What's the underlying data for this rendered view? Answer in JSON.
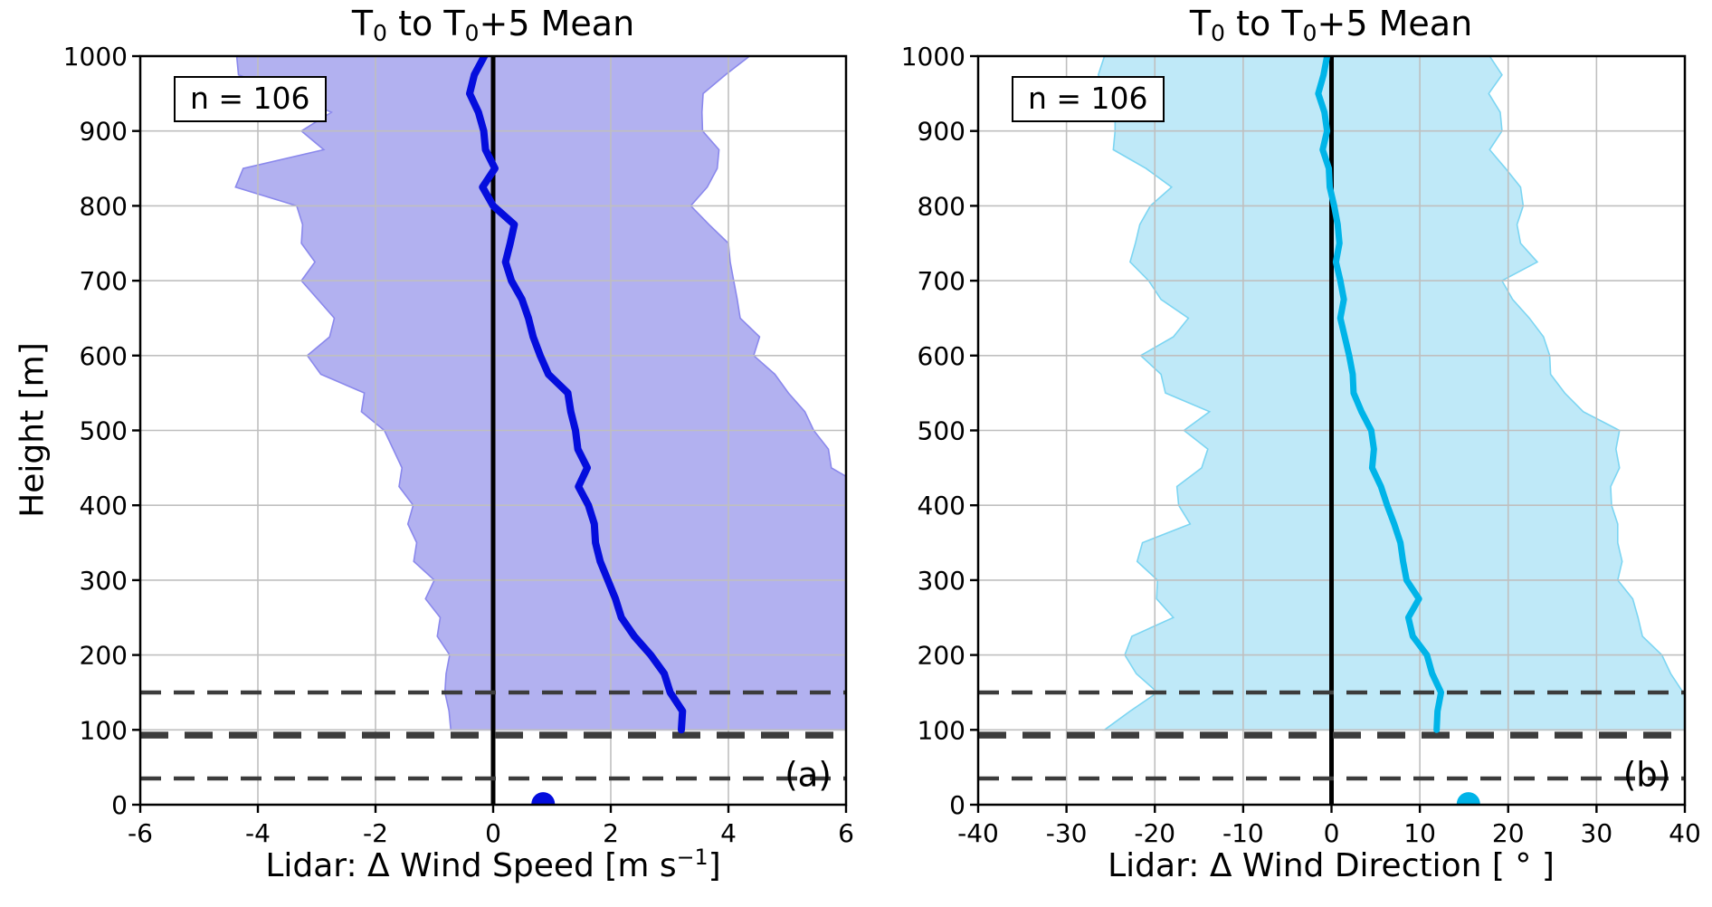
{
  "page": {
    "ylabel": "Height [m]",
    "annotation": "n = 106",
    "title_parts": {
      "p1": "T",
      "s1": "0",
      "p2": " to T",
      "s2": "0",
      "p3": "+5 Mean"
    },
    "xlabel_left_parts": {
      "pre": "Lidar: Δ Wind Speed [m s",
      "sup": "−1",
      "post": "]"
    },
    "xlabel_right": "Lidar: Δ Wind Direction [ ° ]",
    "panel_letters": [
      "(a)",
      "(b)"
    ]
  },
  "chart_data": [
    {
      "type": "area",
      "title": "T0 to T0+5 Mean",
      "xlabel": "Lidar: Δ Wind Speed [m s^-1]",
      "ylabel": "Height [m]",
      "n_samples": 106,
      "xlim": [
        -6,
        6
      ],
      "ylim": [
        0,
        1000
      ],
      "grid": true,
      "x_ticks": [
        -6,
        -4,
        -2,
        0,
        2,
        4,
        6
      ],
      "x_tick_labels": [
        "-6",
        "-4",
        "-2",
        "0",
        "2",
        "4",
        "6"
      ],
      "y_ticks": [
        0,
        100,
        200,
        300,
        400,
        500,
        600,
        700,
        800,
        900,
        1000
      ],
      "y_tick_labels": [
        "0",
        "100",
        "200",
        "300",
        "400",
        "500",
        "600",
        "700",
        "800",
        "900",
        "1000"
      ],
      "heights": [
        100,
        125,
        150,
        175,
        200,
        225,
        250,
        275,
        300,
        325,
        350,
        375,
        400,
        425,
        450,
        475,
        500,
        525,
        550,
        575,
        600,
        625,
        650,
        675,
        700,
        725,
        750,
        775,
        800,
        825,
        850,
        875,
        900,
        925,
        950,
        975,
        1000
      ],
      "mean": [
        3.2,
        3.22,
        3.01,
        2.91,
        2.68,
        2.4,
        2.18,
        2.08,
        1.95,
        1.82,
        1.74,
        1.72,
        1.62,
        1.45,
        1.6,
        1.44,
        1.4,
        1.32,
        1.27,
        0.94,
        0.8,
        0.68,
        0.6,
        0.49,
        0.31,
        0.21,
        0.29,
        0.36,
        0.0,
        -0.18,
        0.03,
        -0.13,
        -0.16,
        -0.25,
        -0.4,
        -0.32,
        -0.15
      ],
      "env_lo": [
        -0.72,
        -0.75,
        -0.82,
        -0.8,
        -0.74,
        -0.95,
        -0.9,
        -1.15,
        -1.0,
        -1.35,
        -1.3,
        -1.45,
        -1.36,
        -1.6,
        -1.55,
        -1.7,
        -1.85,
        -2.24,
        -2.19,
        -2.93,
        -3.16,
        -2.78,
        -2.7,
        -2.98,
        -3.26,
        -3.03,
        -3.26,
        -3.24,
        -3.34,
        -4.38,
        -4.25,
        -2.88,
        -3.26,
        -2.75,
        -3.5,
        -4.33,
        -4.36
      ],
      "env_hi": [
        6.3,
        6.3,
        6.3,
        6.3,
        6.3,
        6.3,
        6.3,
        6.3,
        6.3,
        6.3,
        6.3,
        6.3,
        6.3,
        6.3,
        5.75,
        5.7,
        5.45,
        5.3,
        5.02,
        4.79,
        4.43,
        4.53,
        4.2,
        4.15,
        4.09,
        4.03,
        4.0,
        3.67,
        3.36,
        3.64,
        3.81,
        3.84,
        3.56,
        3.55,
        3.57,
        3.95,
        4.36
      ],
      "surface_dot": {
        "x": 0.85,
        "height": 1
      },
      "hlines": [
        {
          "height": 150,
          "weight": "thin"
        },
        {
          "height": 93,
          "weight": "thick"
        },
        {
          "height": 35,
          "weight": "thin"
        }
      ],
      "colors": {
        "fill": "#b2b1f0",
        "fill_edge": "#8a88ec",
        "line": "#040ddd",
        "zero_line": "#000000",
        "dash": "#3c3c3c",
        "grid": "#bfbfbf"
      }
    },
    {
      "type": "area",
      "title": "T0 to T0+5 Mean",
      "xlabel": "Lidar: Δ Wind Direction [ ° ]",
      "ylabel": "Height [m]",
      "n_samples": 106,
      "xlim": [
        -40,
        40
      ],
      "ylim": [
        0,
        1000
      ],
      "grid": true,
      "x_ticks": [
        -40,
        -30,
        -20,
        -10,
        0,
        10,
        20,
        30,
        40
      ],
      "x_tick_labels": [
        "-40",
        "-30",
        "-20",
        "-10",
        "0",
        "10",
        "20",
        "30",
        "40"
      ],
      "y_ticks": [
        0,
        100,
        200,
        300,
        400,
        500,
        600,
        700,
        800,
        900,
        1000
      ],
      "y_tick_labels": [
        "0",
        "100",
        "200",
        "300",
        "400",
        "500",
        "600",
        "700",
        "800",
        "900",
        "1000"
      ],
      "heights": [
        100,
        125,
        150,
        175,
        200,
        225,
        250,
        275,
        300,
        325,
        350,
        375,
        400,
        425,
        450,
        475,
        500,
        525,
        550,
        575,
        600,
        625,
        650,
        675,
        700,
        725,
        750,
        775,
        800,
        825,
        850,
        875,
        900,
        925,
        950,
        975,
        1000
      ],
      "mean": [
        11.9,
        12.0,
        12.4,
        11.4,
        10.8,
        9.2,
        8.7,
        9.9,
        8.5,
        8.1,
        7.8,
        7.1,
        6.3,
        5.6,
        4.6,
        4.8,
        4.5,
        3.4,
        2.5,
        2.4,
        2.0,
        1.5,
        1.0,
        1.4,
        1.0,
        0.5,
        0.9,
        0.7,
        0.3,
        -0.2,
        -0.3,
        -1.0,
        -0.5,
        -0.8,
        -1.5,
        -0.9,
        -0.5
      ],
      "env_lo": [
        -25.7,
        -22.8,
        -19.7,
        -22.1,
        -23.4,
        -22.6,
        -17.9,
        -19.8,
        -19.7,
        -22.0,
        -21.4,
        -16.0,
        -17.3,
        -17.5,
        -14.7,
        -14.0,
        -16.7,
        -13.8,
        -18.8,
        -19.3,
        -21.6,
        -17.9,
        -16.2,
        -19.3,
        -20.7,
        -22.8,
        -22.2,
        -21.7,
        -20.5,
        -18.1,
        -21.0,
        -24.7,
        -24.5,
        -24.5,
        -25.3,
        -26.4,
        -25.7
      ],
      "env_hi": [
        41.5,
        41.5,
        39.8,
        38.4,
        37.4,
        35.2,
        34.7,
        34.1,
        32.4,
        32.9,
        32.4,
        32.4,
        31.7,
        31.6,
        32.6,
        32.2,
        32.6,
        28.5,
        26.4,
        24.8,
        24.7,
        24.0,
        22.4,
        20.5,
        19.3,
        23.3,
        21.4,
        21.0,
        21.7,
        21.4,
        19.7,
        17.9,
        19.3,
        19.1,
        17.8,
        19.3,
        17.9
      ],
      "surface_dot": {
        "x": 15.5,
        "height": 1
      },
      "hlines": [
        {
          "height": 150,
          "weight": "thin"
        },
        {
          "height": 93,
          "weight": "thick"
        },
        {
          "height": 35,
          "weight": "thin"
        }
      ],
      "colors": {
        "fill": "#bfe9f8",
        "fill_edge": "#7cd5f2",
        "line": "#00b4e8",
        "zero_line": "#000000",
        "dash": "#3c3c3c",
        "grid": "#bfbfbf"
      }
    }
  ]
}
